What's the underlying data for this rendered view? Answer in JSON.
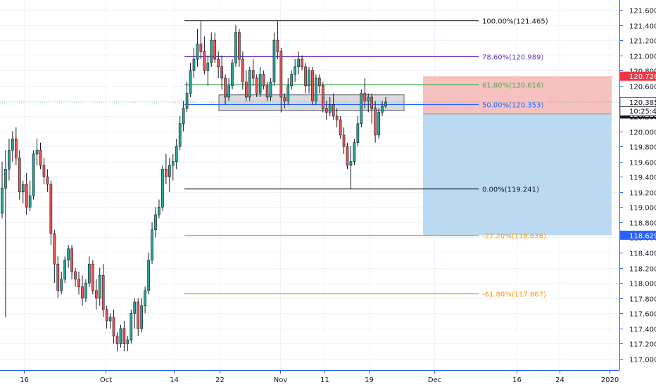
{
  "chart_data": {
    "type": "candlestick",
    "ylim": [
      116.905,
      121.7
    ],
    "y_ticks": [
      "121.600",
      "121.400",
      "121.200",
      "121.000",
      "120.800",
      "120.600",
      "120.400",
      "120.200",
      "120.000",
      "119.800",
      "119.600",
      "119.400",
      "119.200",
      "119.000",
      "118.800",
      "118.600",
      "118.400",
      "118.200",
      "118.000",
      "117.800",
      "117.600",
      "117.400",
      "117.200",
      "117.000"
    ],
    "x_ticks": [
      "16",
      "Oct",
      "14",
      "22",
      "Nov",
      "11",
      "19",
      "Dec",
      "16",
      "24",
      "2020"
    ],
    "candles": [
      {
        "o": 118.92,
        "h": 119.6,
        "l": 118.85,
        "c": 119.25
      },
      {
        "o": 119.25,
        "h": 119.75,
        "l": 117.55,
        "c": 119.5
      },
      {
        "o": 119.5,
        "h": 119.9,
        "l": 119.35,
        "c": 119.75
      },
      {
        "o": 119.75,
        "h": 120.0,
        "l": 119.6,
        "c": 119.9
      },
      {
        "o": 119.9,
        "h": 120.05,
        "l": 119.55,
        "c": 119.65
      },
      {
        "o": 119.65,
        "h": 119.75,
        "l": 119.1,
        "c": 119.2
      },
      {
        "o": 119.2,
        "h": 119.35,
        "l": 119.05,
        "c": 119.3
      },
      {
        "o": 119.3,
        "h": 119.45,
        "l": 118.9,
        "c": 119.0
      },
      {
        "o": 119.0,
        "h": 119.35,
        "l": 118.95,
        "c": 119.15
      },
      {
        "o": 119.15,
        "h": 119.75,
        "l": 119.1,
        "c": 119.7
      },
      {
        "o": 119.7,
        "h": 119.9,
        "l": 119.55,
        "c": 119.75
      },
      {
        "o": 119.75,
        "h": 119.85,
        "l": 119.5,
        "c": 119.55
      },
      {
        "o": 119.55,
        "h": 119.65,
        "l": 119.3,
        "c": 119.4
      },
      {
        "o": 119.4,
        "h": 119.5,
        "l": 119.2,
        "c": 119.3
      },
      {
        "o": 119.3,
        "h": 119.35,
        "l": 118.5,
        "c": 118.65
      },
      {
        "o": 118.65,
        "h": 118.7,
        "l": 118.0,
        "c": 118.25
      },
      {
        "o": 118.25,
        "h": 118.35,
        "l": 117.8,
        "c": 117.9
      },
      {
        "o": 117.9,
        "h": 118.15,
        "l": 117.85,
        "c": 118.05
      },
      {
        "o": 118.05,
        "h": 118.35,
        "l": 118.0,
        "c": 118.3
      },
      {
        "o": 118.3,
        "h": 118.5,
        "l": 118.2,
        "c": 118.45
      },
      {
        "o": 118.45,
        "h": 118.5,
        "l": 118.05,
        "c": 118.15
      },
      {
        "o": 118.15,
        "h": 118.2,
        "l": 117.95,
        "c": 118.05
      },
      {
        "o": 118.05,
        "h": 118.15,
        "l": 117.85,
        "c": 117.95
      },
      {
        "o": 117.95,
        "h": 118.1,
        "l": 117.7,
        "c": 117.8
      },
      {
        "o": 117.8,
        "h": 118.05,
        "l": 117.75,
        "c": 118.0
      },
      {
        "o": 118.0,
        "h": 118.35,
        "l": 117.95,
        "c": 118.25
      },
      {
        "o": 118.25,
        "h": 118.3,
        "l": 117.85,
        "c": 117.9
      },
      {
        "o": 117.9,
        "h": 118.05,
        "l": 117.65,
        "c": 117.8
      },
      {
        "o": 117.8,
        "h": 118.2,
        "l": 117.7,
        "c": 118.1
      },
      {
        "o": 118.1,
        "h": 118.25,
        "l": 117.55,
        "c": 117.65
      },
      {
        "o": 117.65,
        "h": 117.7,
        "l": 117.4,
        "c": 117.5
      },
      {
        "o": 117.5,
        "h": 117.6,
        "l": 117.4,
        "c": 117.55
      },
      {
        "o": 117.55,
        "h": 117.65,
        "l": 117.2,
        "c": 117.3
      },
      {
        "o": 117.3,
        "h": 117.35,
        "l": 117.1,
        "c": 117.2
      },
      {
        "o": 117.2,
        "h": 117.45,
        "l": 117.15,
        "c": 117.4
      },
      {
        "o": 117.4,
        "h": 117.5,
        "l": 117.1,
        "c": 117.2
      },
      {
        "o": 117.2,
        "h": 117.3,
        "l": 117.1,
        "c": 117.25
      },
      {
        "o": 117.25,
        "h": 117.65,
        "l": 117.2,
        "c": 117.6
      },
      {
        "o": 117.6,
        "h": 117.8,
        "l": 117.4,
        "c": 117.75
      },
      {
        "o": 117.75,
        "h": 117.8,
        "l": 117.3,
        "c": 117.4
      },
      {
        "o": 117.4,
        "h": 117.8,
        "l": 117.35,
        "c": 117.7
      },
      {
        "o": 117.7,
        "h": 117.95,
        "l": 117.6,
        "c": 117.9
      },
      {
        "o": 117.9,
        "h": 118.4,
        "l": 117.85,
        "c": 118.3
      },
      {
        "o": 118.3,
        "h": 118.8,
        "l": 118.25,
        "c": 118.7
      },
      {
        "o": 118.7,
        "h": 119.0,
        "l": 118.6,
        "c": 118.9
      },
      {
        "o": 118.9,
        "h": 119.1,
        "l": 118.85,
        "c": 119.0
      },
      {
        "o": 119.0,
        "h": 119.55,
        "l": 118.95,
        "c": 119.5
      },
      {
        "o": 119.5,
        "h": 119.7,
        "l": 119.3,
        "c": 119.4
      },
      {
        "o": 119.4,
        "h": 119.65,
        "l": 119.2,
        "c": 119.55
      },
      {
        "o": 119.55,
        "h": 119.7,
        "l": 119.35,
        "c": 119.6
      },
      {
        "o": 119.6,
        "h": 119.9,
        "l": 119.5,
        "c": 119.8
      },
      {
        "o": 119.8,
        "h": 120.2,
        "l": 119.75,
        "c": 120.1
      },
      {
        "o": 120.1,
        "h": 120.4,
        "l": 120.0,
        "c": 120.3
      },
      {
        "o": 120.3,
        "h": 120.65,
        "l": 120.25,
        "c": 120.5
      },
      {
        "o": 120.5,
        "h": 120.9,
        "l": 120.45,
        "c": 120.8
      },
      {
        "o": 120.8,
        "h": 121.1,
        "l": 120.7,
        "c": 120.95
      },
      {
        "o": 120.95,
        "h": 121.35,
        "l": 120.85,
        "c": 121.15
      },
      {
        "o": 121.15,
        "h": 121.45,
        "l": 120.95,
        "c": 121.05
      },
      {
        "o": 121.05,
        "h": 121.25,
        "l": 120.75,
        "c": 120.8
      },
      {
        "o": 120.8,
        "h": 121.0,
        "l": 120.6,
        "c": 120.9
      },
      {
        "o": 120.9,
        "h": 121.3,
        "l": 120.85,
        "c": 121.2
      },
      {
        "o": 121.2,
        "h": 121.3,
        "l": 120.9,
        "c": 120.95
      },
      {
        "o": 120.95,
        "h": 121.05,
        "l": 120.7,
        "c": 120.85
      },
      {
        "o": 120.85,
        "h": 121.0,
        "l": 120.55,
        "c": 120.7
      },
      {
        "o": 120.7,
        "h": 120.75,
        "l": 120.35,
        "c": 120.45
      },
      {
        "o": 120.45,
        "h": 120.7,
        "l": 120.4,
        "c": 120.6
      },
      {
        "o": 120.6,
        "h": 120.95,
        "l": 120.55,
        "c": 120.9
      },
      {
        "o": 120.9,
        "h": 121.4,
        "l": 120.85,
        "c": 121.3
      },
      {
        "o": 121.3,
        "h": 121.35,
        "l": 120.85,
        "c": 120.95
      },
      {
        "o": 120.95,
        "h": 121.05,
        "l": 120.55,
        "c": 120.65
      },
      {
        "o": 120.65,
        "h": 120.8,
        "l": 120.4,
        "c": 120.45
      },
      {
        "o": 120.45,
        "h": 120.85,
        "l": 120.4,
        "c": 120.8
      },
      {
        "o": 120.8,
        "h": 120.95,
        "l": 120.6,
        "c": 120.7
      },
      {
        "o": 120.7,
        "h": 120.75,
        "l": 120.45,
        "c": 120.5
      },
      {
        "o": 120.5,
        "h": 120.85,
        "l": 120.45,
        "c": 120.75
      },
      {
        "o": 120.75,
        "h": 120.8,
        "l": 120.55,
        "c": 120.6
      },
      {
        "o": 120.6,
        "h": 120.65,
        "l": 120.4,
        "c": 120.45
      },
      {
        "o": 120.45,
        "h": 120.7,
        "l": 120.4,
        "c": 120.65
      },
      {
        "o": 120.65,
        "h": 121.3,
        "l": 120.6,
        "c": 121.2
      },
      {
        "o": 121.2,
        "h": 121.45,
        "l": 120.95,
        "c": 121.05
      },
      {
        "o": 121.05,
        "h": 121.1,
        "l": 120.25,
        "c": 120.45
      },
      {
        "o": 120.45,
        "h": 120.5,
        "l": 120.3,
        "c": 120.4
      },
      {
        "o": 120.4,
        "h": 120.7,
        "l": 120.35,
        "c": 120.6
      },
      {
        "o": 120.6,
        "h": 120.8,
        "l": 120.55,
        "c": 120.75
      },
      {
        "o": 120.75,
        "h": 120.95,
        "l": 120.65,
        "c": 120.85
      },
      {
        "o": 120.85,
        "h": 121.05,
        "l": 120.75,
        "c": 120.95
      },
      {
        "o": 120.95,
        "h": 121.0,
        "l": 120.8,
        "c": 120.85
      },
      {
        "o": 120.85,
        "h": 120.9,
        "l": 120.5,
        "c": 120.6
      },
      {
        "o": 120.6,
        "h": 120.85,
        "l": 120.5,
        "c": 120.8
      },
      {
        "o": 120.8,
        "h": 120.85,
        "l": 120.35,
        "c": 120.4
      },
      {
        "o": 120.4,
        "h": 120.75,
        "l": 120.35,
        "c": 120.7
      },
      {
        "o": 120.7,
        "h": 120.75,
        "l": 120.5,
        "c": 120.6
      },
      {
        "o": 120.6,
        "h": 120.65,
        "l": 120.25,
        "c": 120.3
      },
      {
        "o": 120.3,
        "h": 120.4,
        "l": 120.15,
        "c": 120.25
      },
      {
        "o": 120.25,
        "h": 120.45,
        "l": 120.2,
        "c": 120.35
      },
      {
        "o": 120.35,
        "h": 120.5,
        "l": 120.15,
        "c": 120.2
      },
      {
        "o": 120.2,
        "h": 120.3,
        "l": 120.05,
        "c": 120.15
      },
      {
        "o": 120.15,
        "h": 120.2,
        "l": 119.9,
        "c": 119.95
      },
      {
        "o": 119.95,
        "h": 120.05,
        "l": 119.7,
        "c": 119.8
      },
      {
        "o": 119.8,
        "h": 119.85,
        "l": 119.5,
        "c": 119.55
      },
      {
        "o": 119.55,
        "h": 119.8,
        "l": 119.24,
        "c": 119.6
      },
      {
        "o": 119.6,
        "h": 119.9,
        "l": 119.55,
        "c": 119.85
      },
      {
        "o": 119.85,
        "h": 120.2,
        "l": 119.8,
        "c": 120.1
      },
      {
        "o": 120.1,
        "h": 120.55,
        "l": 120.05,
        "c": 120.5
      },
      {
        "o": 120.5,
        "h": 120.7,
        "l": 120.3,
        "c": 120.4
      },
      {
        "o": 120.4,
        "h": 120.5,
        "l": 120.25,
        "c": 120.45
      },
      {
        "o": 120.45,
        "h": 120.5,
        "l": 120.1,
        "c": 120.3
      },
      {
        "o": 120.3,
        "h": 120.4,
        "l": 119.85,
        "c": 119.95
      },
      {
        "o": 119.95,
        "h": 120.3,
        "l": 119.9,
        "c": 120.25
      },
      {
        "o": 120.25,
        "h": 120.4,
        "l": 120.2,
        "c": 120.33
      },
      {
        "o": 120.33,
        "h": 120.45,
        "l": 120.3,
        "c": 120.385
      }
    ],
    "fib_levels": [
      {
        "value": 121.465,
        "label": "100.00%(121.465)",
        "color": "#131722"
      },
      {
        "value": 120.989,
        "label": "78.60%(120.989)",
        "color": "#673ab7"
      },
      {
        "value": 120.616,
        "label": "61.80%(120.616)",
        "color": "#4caf50"
      },
      {
        "value": 120.353,
        "label": "50.00%(120.353)",
        "color": "#2962ff"
      },
      {
        "value": 119.241,
        "label": "0.00%(119.241)",
        "color": "#131722"
      },
      {
        "value": 118.636,
        "label": "-27.20%(118.636)",
        "color": "#ff9800"
      },
      {
        "value": 117.867,
        "label": "-61.80%(117.867)",
        "color": "#ff9800"
      }
    ],
    "zone_box": {
      "top": 120.48,
      "bottom": 120.27
    },
    "position": {
      "entry": 120.228,
      "stop": 120.726,
      "target": 118.629
    },
    "price_tags": [
      {
        "value": 120.726,
        "label": "120.726",
        "bg": "#f23645",
        "fg": "#ffffff"
      },
      {
        "value": 120.385,
        "label": "120.385",
        "bg": "#ffffff",
        "fg": "#131722"
      },
      {
        "value": 120.228,
        "label": "120.228",
        "bg": "#131722",
        "fg": "#ffffff"
      },
      {
        "value": 118.629,
        "label": "118.629",
        "bg": "#2962ff",
        "fg": "#ffffff"
      }
    ],
    "countdown": "10:25:45",
    "current_price": 120.385
  },
  "colors": {
    "up": "#26a69a",
    "down": "#ef5350",
    "axis": "#2962ff",
    "grid": "#f0f3fa"
  }
}
